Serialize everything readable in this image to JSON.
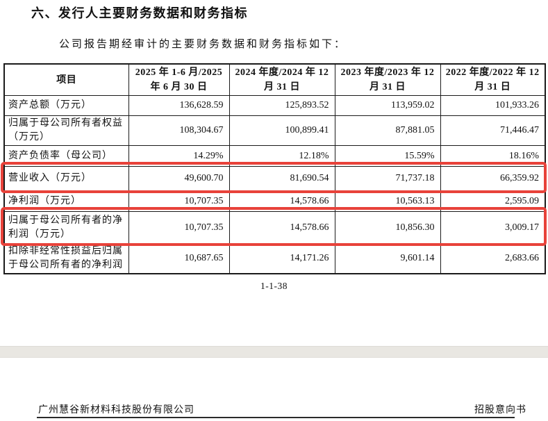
{
  "page": {
    "title": "六、发行人主要财务数据和财务指标",
    "intro": "公司报告期经审计的主要财务数据和财务指标如下：",
    "page_number": "1-1-38",
    "next_page_header": {
      "left": "广州慧谷新材料科技股份有限公司",
      "right": "招股意向书"
    }
  },
  "colors": {
    "annotation_red": "#e8423a",
    "separator_gray": "#e9e7e2"
  },
  "table": {
    "columns": [
      "项目",
      "2025 年 1-6 月/2025 年 6 月 30 日",
      "2024 年度/2024 年 12 月 31 日",
      "2023 年度/2023 年 12 月 31 日",
      "2022 年度/2022 年 12 月 31 日"
    ],
    "rows": [
      {
        "label": "资产总额（万元）",
        "values": [
          "136,628.59",
          "125,893.52",
          "113,959.02",
          "101,933.26"
        ],
        "highlighted": false
      },
      {
        "label": "归属于母公司所有者权益（万元）",
        "values": [
          "108,304.67",
          "100,899.41",
          "87,881.05",
          "71,446.47"
        ],
        "highlighted": false
      },
      {
        "label": "资产负债率（母公司）",
        "values": [
          "14.29%",
          "12.18%",
          "15.59%",
          "18.16%"
        ],
        "highlighted": false
      },
      {
        "label": "营业收入（万元）",
        "values": [
          "49,600.70",
          "81,690.54",
          "71,737.18",
          "66,359.92"
        ],
        "highlighted": true
      },
      {
        "label": "净利润（万元）",
        "values": [
          "10,707.35",
          "14,578.66",
          "10,563.13",
          "2,595.09"
        ],
        "highlighted": false
      },
      {
        "label": "归属于母公司所有者的净利润（万元）",
        "values": [
          "10,707.35",
          "14,578.66",
          "10,856.30",
          "3,009.17"
        ],
        "highlighted": true
      },
      {
        "label": "扣除非经常性损益后归属于母公司所有者的净利润",
        "values": [
          "10,687.65",
          "14,171.26",
          "9,601.14",
          "2,683.66"
        ],
        "highlighted": false
      }
    ]
  }
}
